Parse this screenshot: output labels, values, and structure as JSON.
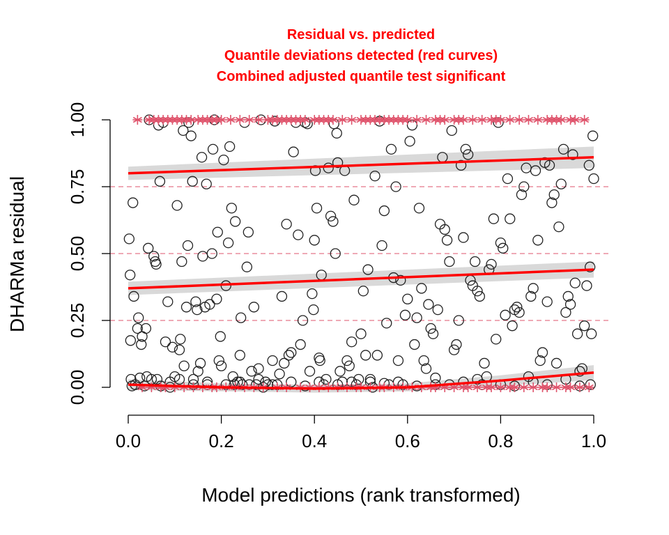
{
  "chart_data": {
    "type": "scatter",
    "title_lines": [
      "Residual vs. predicted",
      "Quantile deviations detected (red curves)",
      "Combined adjusted quantile test significant"
    ],
    "xlabel": "Model predictions (rank transformed)",
    "ylabel": "DHARMa residual",
    "xlim": [
      0,
      1
    ],
    "ylim": [
      0,
      1
    ],
    "x_ticks": [
      "0.0",
      "0.2",
      "0.4",
      "0.6",
      "0.8",
      "1.0"
    ],
    "y_ticks": [
      "0.00",
      "0.25",
      "0.50",
      "0.75",
      "1.00"
    ],
    "reference_lines": [
      0.25,
      0.5,
      0.75
    ],
    "colors": {
      "title": "#ff0000",
      "points": "#222222",
      "outliers": "#df536b",
      "quantile_curves": "#ff0000",
      "bands": "#d9d9d9",
      "reference": "#df536b"
    },
    "quantile_curves": [
      {
        "quantile": 0.25,
        "x": [
          0,
          0.2,
          0.4,
          0.6,
          0.8,
          1.0
        ],
        "y": [
          0.01,
          0.0,
          -0.005,
          0.0,
          0.025,
          0.055
        ],
        "band": [
          0.02,
          0.015,
          0.015,
          0.015,
          0.02,
          0.028
        ]
      },
      {
        "quantile": 0.5,
        "x": [
          0,
          1
        ],
        "y": [
          0.37,
          0.44
        ],
        "band": [
          0.025,
          0.03
        ]
      },
      {
        "quantile": 0.75,
        "x": [
          0,
          1
        ],
        "y": [
          0.8,
          0.86
        ],
        "band": [
          0.025,
          0.04
        ]
      }
    ],
    "points": [
      [
        0.002,
        0.555
      ],
      [
        0.004,
        0.42
      ],
      [
        0.005,
        0.175
      ],
      [
        0.006,
        0.03
      ],
      [
        0.008,
        0.005
      ],
      [
        0.01,
        0.69
      ],
      [
        0.012,
        0.34
      ],
      [
        0.015,
        0.01
      ],
      [
        0.02,
        0.22
      ],
      [
        0.022,
        0.26
      ],
      [
        0.025,
        0.035
      ],
      [
        0.028,
        0.16
      ],
      [
        0.03,
        0.19
      ],
      [
        0.035,
        0.005
      ],
      [
        0.038,
        0.22
      ],
      [
        0.04,
        0.04
      ],
      [
        0.043,
        0.52
      ],
      [
        0.045,
        1.0
      ],
      [
        0.05,
        0.03
      ],
      [
        0.055,
        0.49
      ],
      [
        0.058,
        0.47
      ],
      [
        0.06,
        0.46
      ],
      [
        0.062,
        0.03
      ],
      [
        0.065,
        0.98
      ],
      [
        0.068,
        0.77
      ],
      [
        0.07,
        0.005
      ],
      [
        0.075,
        0.99
      ],
      [
        0.08,
        0.17
      ],
      [
        0.085,
        0.32
      ],
      [
        0.09,
        0.0
      ],
      [
        0.095,
        0.15
      ],
      [
        0.1,
        0.04
      ],
      [
        0.105,
        0.68
      ],
      [
        0.11,
        0.14
      ],
      [
        0.112,
        0.18
      ],
      [
        0.115,
        0.47
      ],
      [
        0.118,
        0.96
      ],
      [
        0.12,
        0.08
      ],
      [
        0.125,
        0.3
      ],
      [
        0.128,
        0.53
      ],
      [
        0.13,
        0.99
      ],
      [
        0.135,
        0.94
      ],
      [
        0.138,
        0.77
      ],
      [
        0.14,
        0.03
      ],
      [
        0.145,
        0.32
      ],
      [
        0.148,
        0.29
      ],
      [
        0.15,
        0.06
      ],
      [
        0.155,
        0.09
      ],
      [
        0.158,
        0.86
      ],
      [
        0.16,
        0.49
      ],
      [
        0.165,
        0.3
      ],
      [
        0.168,
        0.76
      ],
      [
        0.17,
        0.01
      ],
      [
        0.175,
        0.31
      ],
      [
        0.18,
        0.5
      ],
      [
        0.182,
        0.89
      ],
      [
        0.185,
        1.0
      ],
      [
        0.19,
        0.33
      ],
      [
        0.192,
        0.58
      ],
      [
        0.195,
        0.1
      ],
      [
        0.198,
        0.19
      ],
      [
        0.2,
        0.08
      ],
      [
        0.205,
        0.85
      ],
      [
        0.21,
        0.38
      ],
      [
        0.215,
        0.54
      ],
      [
        0.218,
        0.9
      ],
      [
        0.222,
        0.67
      ],
      [
        0.225,
        0.04
      ],
      [
        0.228,
        0.01
      ],
      [
        0.23,
        0.62
      ],
      [
        0.235,
        0.02
      ],
      [
        0.24,
        0.12
      ],
      [
        0.242,
        0.26
      ],
      [
        0.245,
        0.01
      ],
      [
        0.25,
        0.99
      ],
      [
        0.255,
        0.45
      ],
      [
        0.258,
        0.58
      ],
      [
        0.265,
        0.06
      ],
      [
        0.27,
        0.3
      ],
      [
        0.275,
        0.01
      ],
      [
        0.28,
        0.07
      ],
      [
        0.285,
        1.0
      ],
      [
        0.29,
        0.0
      ],
      [
        0.295,
        0.02
      ],
      [
        0.3,
        0.01
      ],
      [
        0.31,
        0.1
      ],
      [
        0.315,
        0.995
      ],
      [
        0.32,
        0.01
      ],
      [
        0.325,
        0.05
      ],
      [
        0.33,
        0.34
      ],
      [
        0.335,
        0.09
      ],
      [
        0.34,
        0.61
      ],
      [
        0.345,
        0.12
      ],
      [
        0.35,
        0.13
      ],
      [
        0.355,
        0.88
      ],
      [
        0.36,
        0.99
      ],
      [
        0.365,
        0.57
      ],
      [
        0.37,
        0.16
      ],
      [
        0.375,
        0.25
      ],
      [
        0.38,
        0.99
      ],
      [
        0.385,
        0.985
      ],
      [
        0.39,
        0.06
      ],
      [
        0.395,
        0.35
      ],
      [
        0.398,
        0.29
      ],
      [
        0.4,
        0.55
      ],
      [
        0.402,
        0.81
      ],
      [
        0.405,
        0.67
      ],
      [
        0.41,
        0.11
      ],
      [
        0.412,
        0.1
      ],
      [
        0.415,
        0.42
      ],
      [
        0.42,
        0.01
      ],
      [
        0.425,
        0.03
      ],
      [
        0.43,
        0.82
      ],
      [
        0.435,
        0.64
      ],
      [
        0.44,
        0.62
      ],
      [
        0.442,
        0.985
      ],
      [
        0.445,
        0.5
      ],
      [
        0.448,
        0.95
      ],
      [
        0.45,
        0.84
      ],
      [
        0.455,
        0.06
      ],
      [
        0.46,
        0.02
      ],
      [
        0.465,
        0.81
      ],
      [
        0.47,
        0.1
      ],
      [
        0.475,
        0.08
      ],
      [
        0.48,
        0.17
      ],
      [
        0.485,
        0.7
      ],
      [
        0.49,
        0.01
      ],
      [
        0.495,
        0.03
      ],
      [
        0.5,
        0.2
      ],
      [
        0.505,
        0.36
      ],
      [
        0.51,
        0.12
      ],
      [
        0.515,
        0.44
      ],
      [
        0.52,
        0.02
      ],
      [
        0.525,
        0.0
      ],
      [
        0.53,
        0.79
      ],
      [
        0.535,
        0.12
      ],
      [
        0.54,
        0.995
      ],
      [
        0.545,
        0.53
      ],
      [
        0.55,
        0.66
      ],
      [
        0.555,
        0.24
      ],
      [
        0.56,
        0.01
      ],
      [
        0.565,
        0.89
      ],
      [
        0.57,
        0.41
      ],
      [
        0.575,
        0.75
      ],
      [
        0.58,
        0.1
      ],
      [
        0.585,
        0.4
      ],
      [
        0.59,
        0.01
      ],
      [
        0.595,
        0.27
      ],
      [
        0.6,
        0.33
      ],
      [
        0.605,
        0.92
      ],
      [
        0.61,
        0.98
      ],
      [
        0.615,
        0.16
      ],
      [
        0.62,
        0.26
      ],
      [
        0.625,
        0.67
      ],
      [
        0.63,
        0.37
      ],
      [
        0.635,
        0.1
      ],
      [
        0.64,
        0.07
      ],
      [
        0.645,
        0.31
      ],
      [
        0.65,
        0.22
      ],
      [
        0.655,
        0.2
      ],
      [
        0.66,
        0.01
      ],
      [
        0.665,
        0.29
      ],
      [
        0.67,
        0.61
      ],
      [
        0.675,
        0.86
      ],
      [
        0.68,
        0.59
      ],
      [
        0.685,
        0.55
      ],
      [
        0.69,
        0.47
      ],
      [
        0.695,
        0.96
      ],
      [
        0.7,
        0.14
      ],
      [
        0.705,
        0.16
      ],
      [
        0.71,
        0.25
      ],
      [
        0.715,
        0.83
      ],
      [
        0.72,
        0.56
      ],
      [
        0.725,
        0.89
      ],
      [
        0.73,
        0.87
      ],
      [
        0.735,
        0.4
      ],
      [
        0.74,
        0.38
      ],
      [
        0.745,
        0.47
      ],
      [
        0.75,
        0.36
      ],
      [
        0.755,
        0.34
      ],
      [
        0.76,
        0.01
      ],
      [
        0.765,
        0.09
      ],
      [
        0.77,
        0.04
      ],
      [
        0.775,
        0.44
      ],
      [
        0.78,
        0.46
      ],
      [
        0.785,
        0.63
      ],
      [
        0.79,
        0.18
      ],
      [
        0.795,
        0.99
      ],
      [
        0.8,
        0.54
      ],
      [
        0.805,
        0.52
      ],
      [
        0.81,
        0.27
      ],
      [
        0.815,
        0.78
      ],
      [
        0.82,
        0.63
      ],
      [
        0.825,
        0.23
      ],
      [
        0.83,
        0.29
      ],
      [
        0.835,
        0.3
      ],
      [
        0.84,
        0.28
      ],
      [
        0.845,
        0.72
      ],
      [
        0.85,
        0.75
      ],
      [
        0.855,
        0.82
      ],
      [
        0.86,
        0.04
      ],
      [
        0.865,
        0.34
      ],
      [
        0.87,
        0.37
      ],
      [
        0.875,
        0.81
      ],
      [
        0.88,
        0.55
      ],
      [
        0.885,
        0.1
      ],
      [
        0.89,
        0.13
      ],
      [
        0.895,
        0.84
      ],
      [
        0.9,
        0.32
      ],
      [
        0.905,
        0.83
      ],
      [
        0.91,
        0.69
      ],
      [
        0.915,
        0.72
      ],
      [
        0.92,
        0.09
      ],
      [
        0.925,
        0.6
      ],
      [
        0.93,
        0.76
      ],
      [
        0.935,
        0.89
      ],
      [
        0.94,
        0.28
      ],
      [
        0.945,
        0.34
      ],
      [
        0.95,
        0.31
      ],
      [
        0.955,
        0.87
      ],
      [
        0.96,
        0.39
      ],
      [
        0.965,
        0.2
      ],
      [
        0.97,
        0.06
      ],
      [
        0.975,
        0.07
      ],
      [
        0.98,
        0.23
      ],
      [
        0.985,
        0.38
      ],
      [
        0.99,
        0.83
      ],
      [
        0.992,
        0.45
      ],
      [
        0.995,
        0.2
      ],
      [
        0.998,
        0.94
      ],
      [
        1.0,
        0.78
      ],
      [
        0.993,
        0.01
      ],
      [
        0.97,
        0.005
      ],
      [
        0.94,
        0.03
      ],
      [
        0.9,
        0.01
      ],
      [
        0.87,
        0.02
      ],
      [
        0.83,
        0.005
      ],
      [
        0.8,
        0.01
      ],
      [
        0.75,
        0.03
      ],
      [
        0.72,
        0.02
      ],
      [
        0.69,
        0.01
      ],
      [
        0.66,
        0.035
      ],
      [
        0.62,
        0.005
      ],
      [
        0.58,
        0.02
      ],
      [
        0.55,
        0.015
      ],
      [
        0.52,
        0.03
      ],
      [
        0.48,
        0.02
      ],
      [
        0.45,
        0.01
      ],
      [
        0.41,
        0.02
      ],
      [
        0.38,
        0.005
      ],
      [
        0.35,
        0.02
      ],
      [
        0.31,
        0.01
      ],
      [
        0.28,
        0.03
      ],
      [
        0.26,
        0.01
      ],
      [
        0.24,
        0.02
      ],
      [
        0.21,
        0.01
      ],
      [
        0.17,
        0.02
      ],
      [
        0.14,
        0.01
      ],
      [
        0.11,
        0.03
      ],
      [
        0.09,
        0.02
      ]
    ],
    "outliers_top_x": [
      0.02,
      0.045,
      0.055,
      0.065,
      0.075,
      0.085,
      0.095,
      0.105,
      0.115,
      0.125,
      0.135,
      0.15,
      0.16,
      0.17,
      0.18,
      0.19,
      0.2,
      0.22,
      0.24,
      0.26,
      0.28,
      0.3,
      0.31,
      0.32,
      0.33,
      0.34,
      0.35,
      0.36,
      0.37,
      0.38,
      0.4,
      0.41,
      0.42,
      0.43,
      0.44,
      0.46,
      0.48,
      0.5,
      0.51,
      0.52,
      0.53,
      0.54,
      0.55,
      0.56,
      0.57,
      0.58,
      0.59,
      0.6,
      0.62,
      0.64,
      0.66,
      0.67,
      0.68,
      0.7,
      0.71,
      0.72,
      0.74,
      0.76,
      0.78,
      0.79,
      0.8,
      0.82,
      0.84,
      0.86,
      0.88,
      0.9,
      0.91,
      0.92,
      0.93,
      0.95,
      0.96,
      0.98
    ],
    "outliers_bottom_x": [
      0.03,
      0.05,
      0.07,
      0.08,
      0.1,
      0.12,
      0.14,
      0.16,
      0.18,
      0.19,
      0.21,
      0.23,
      0.25,
      0.27,
      0.29,
      0.32,
      0.34,
      0.37,
      0.39,
      0.41,
      0.43,
      0.45,
      0.47,
      0.49,
      0.5,
      0.52,
      0.54,
      0.55,
      0.57,
      0.59,
      0.61,
      0.63,
      0.65,
      0.66,
      0.68,
      0.7,
      0.72,
      0.73,
      0.75,
      0.77,
      0.78,
      0.8,
      0.82,
      0.83,
      0.85,
      0.87,
      0.89,
      0.9,
      0.92,
      0.94,
      0.95,
      0.97,
      0.99
    ]
  }
}
